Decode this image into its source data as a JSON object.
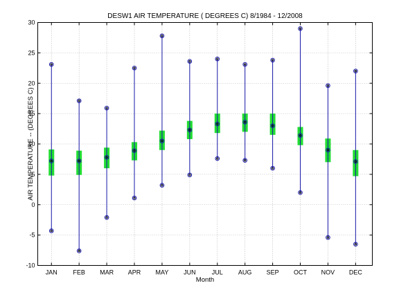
{
  "chart_data": {
    "type": "box",
    "title": "DESW1  AIR TEMPERATURE ( DEGREES C) 8/1984 - 12/2008",
    "xlabel": "Month",
    "ylabel": "AIR TEMPERATURE -- (DEGREES C)",
    "ylim": [
      -10,
      30
    ],
    "yticks": [
      -10,
      -5,
      0,
      5,
      10,
      15,
      20,
      25,
      30
    ],
    "grid": true,
    "categories": [
      "JAN",
      "FEB",
      "MAR",
      "APR",
      "MAY",
      "JUN",
      "JUL",
      "AUG",
      "SEP",
      "OCT",
      "NOV",
      "DEC"
    ],
    "min": [
      -4.3,
      -7.6,
      -2.1,
      1.1,
      3.2,
      4.9,
      7.6,
      7.3,
      6.0,
      2.0,
      -5.4,
      -6.5
    ],
    "max": [
      23.1,
      17.1,
      15.9,
      22.5,
      27.8,
      23.6,
      24.0,
      23.1,
      23.8,
      29.0,
      19.6,
      22.0
    ],
    "mean": [
      7.2,
      7.2,
      7.8,
      8.9,
      10.5,
      12.3,
      13.3,
      13.6,
      13.0,
      11.4,
      9.0,
      7.1
    ],
    "q_low": [
      4.8,
      4.9,
      6.0,
      7.3,
      9.0,
      10.8,
      11.8,
      12.0,
      11.5,
      9.8,
      7.0,
      4.7
    ],
    "q_high": [
      9.1,
      8.9,
      9.4,
      10.3,
      12.2,
      13.8,
      15.0,
      15.0,
      15.0,
      12.8,
      10.9,
      9.0
    ],
    "colors": {
      "range_line": "#1515a8",
      "box_fill": "#22dd33",
      "marker": "#000000",
      "grid": "#9a9a9a"
    }
  }
}
